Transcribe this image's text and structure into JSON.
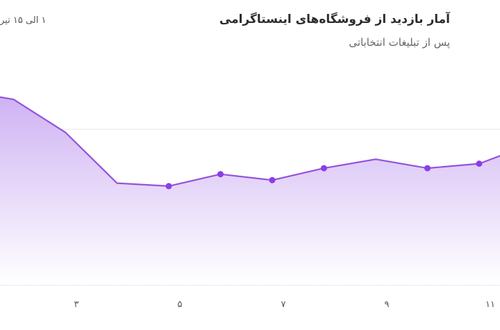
{
  "header": {
    "title": "آمار بازدید از فروشگاه‌های اینستاگرامی",
    "subtitle": "پس از تبلیغات انتخاباتی",
    "date_range": "۱ الی ۱۵ تیر"
  },
  "chart_data": {
    "type": "area",
    "title": "آمار بازدید از فروشگاه‌های اینستاگرامی",
    "subtitle": "پس از تبلیغات انتخاباتی",
    "x": [
      1,
      2,
      3,
      4,
      5,
      6,
      7,
      8,
      9,
      10,
      11,
      12
    ],
    "series": [
      {
        "values": [
          93,
          90,
          79,
          62,
          61,
          65,
          63,
          67,
          70,
          67,
          68.5,
          75
        ]
      }
    ],
    "x_tick_labels": [
      {
        "x": 3,
        "label": "۳"
      },
      {
        "x": 5,
        "label": "۵"
      },
      {
        "x": 7,
        "label": "۷"
      },
      {
        "x": 9,
        "label": "۹"
      },
      {
        "x": 11,
        "label": "۱۱"
      }
    ],
    "marked_points": [
      4,
      5,
      6,
      7,
      9,
      10
    ],
    "gridlines": [
      80,
      55
    ],
    "ylim": [
      28,
      100
    ],
    "grid": true,
    "colors": {
      "line": "#9452db",
      "marker": "#8a3ee6",
      "area_top": "#cdb0f3",
      "area_bottom": "#ffffff",
      "gridline": "#e8e4ee",
      "baseline": "#e9e2f3"
    }
  }
}
